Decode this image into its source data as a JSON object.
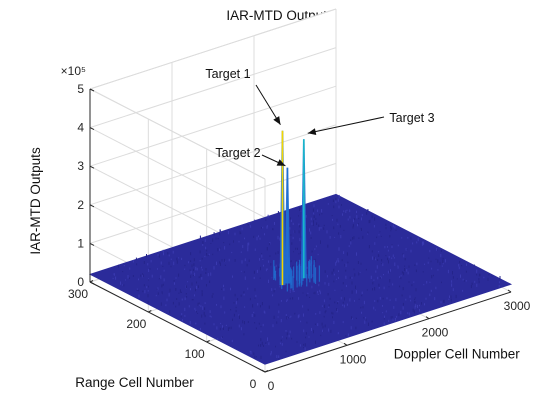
{
  "chart_data": {
    "type": "surface",
    "title": "IAR-MTD Outputs",
    "xlabel": "Doppler Cell Number",
    "ylabel": "Range Cell Number",
    "zlabel": "IAR-MTD Outputs",
    "z_exponent_label": "×10⁵",
    "x_ticks": [
      "0",
      "1000",
      "2000",
      "3000"
    ],
    "y_ticks": [
      "0",
      "100",
      "200",
      "300"
    ],
    "z_ticks": [
      "0",
      "1",
      "2",
      "3",
      "4",
      "5"
    ],
    "xlim": [
      0,
      3000
    ],
    "ylim": [
      0,
      300
    ],
    "zlim": [
      0,
      500000
    ],
    "floor_level": 20000,
    "targets": [
      {
        "name": "Target 1",
        "x": 1280,
        "y": 150,
        "z": 420000
      },
      {
        "name": "Target 2",
        "x": 1340,
        "y": 150,
        "z": 320000
      },
      {
        "name": "Target 3",
        "x": 1540,
        "y": 150,
        "z": 380000
      }
    ],
    "annotations": [
      "Target 1",
      "Target 2",
      "Target 3"
    ],
    "colormap": [
      "#2b2b9a",
      "#1f6fd1",
      "#17b6c9",
      "#f2d600"
    ],
    "grid": true
  }
}
